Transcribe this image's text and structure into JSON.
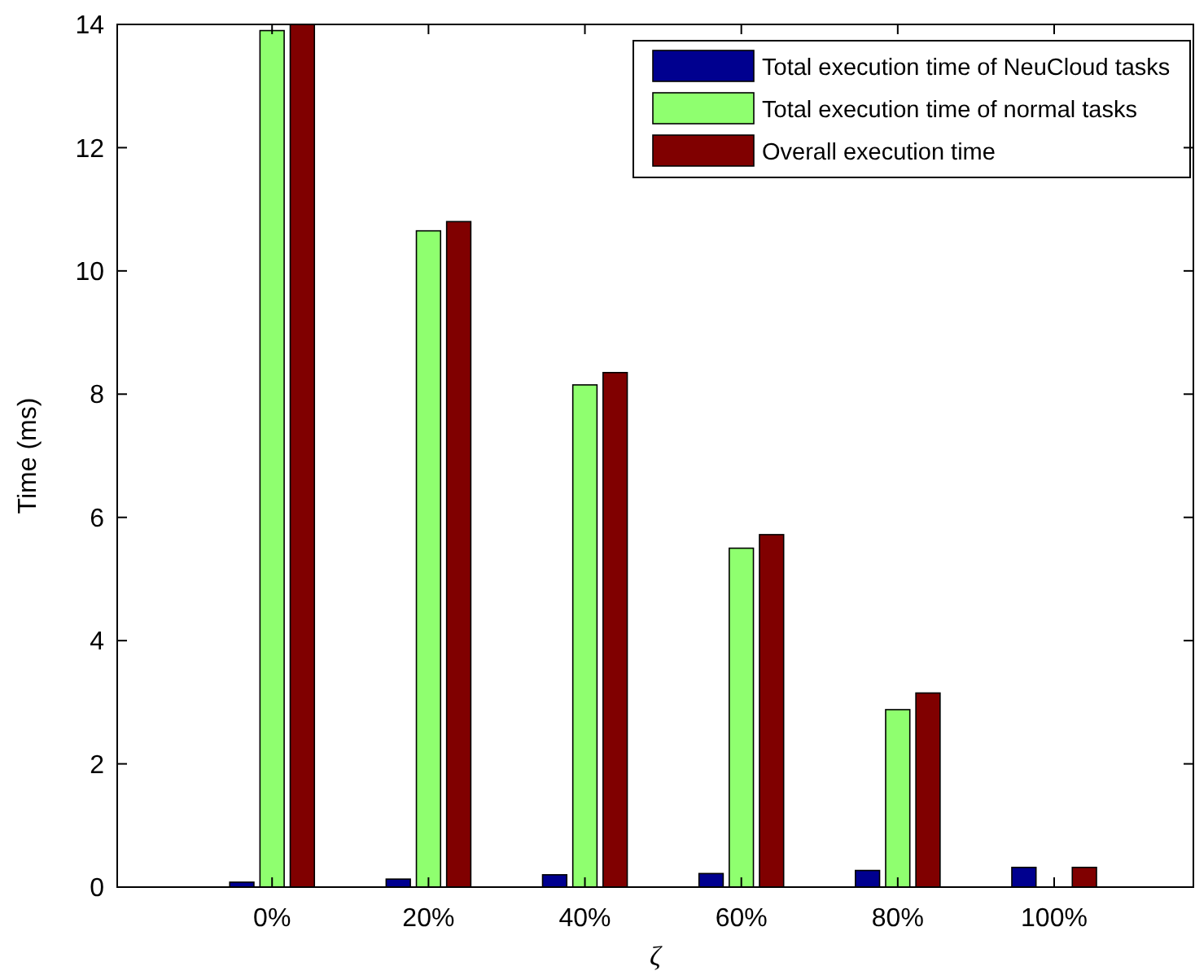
{
  "chart_data": {
    "type": "bar",
    "xlabel": "ζ",
    "ylabel": "Time (ms)",
    "categories": [
      "0%",
      "20%",
      "40%",
      "60%",
      "80%",
      "100%"
    ],
    "series": [
      {
        "name": "Total execution time of NeuCloud tasks",
        "color": "#00008f",
        "values": [
          0.08,
          0.13,
          0.2,
          0.22,
          0.27,
          0.32
        ]
      },
      {
        "name": "Total execution time of normal tasks",
        "color": "#8fff6f",
        "values": [
          13.9,
          10.65,
          8.15,
          5.5,
          2.88,
          0
        ]
      },
      {
        "name": "Overall execution time",
        "color": "#800000",
        "values": [
          14.0,
          10.8,
          8.35,
          5.72,
          3.15,
          0.32
        ]
      }
    ],
    "ylim": [
      0,
      14
    ],
    "yticks": [
      0,
      2,
      4,
      6,
      8,
      10,
      12,
      14
    ],
    "grid": false,
    "legend": "top right"
  }
}
